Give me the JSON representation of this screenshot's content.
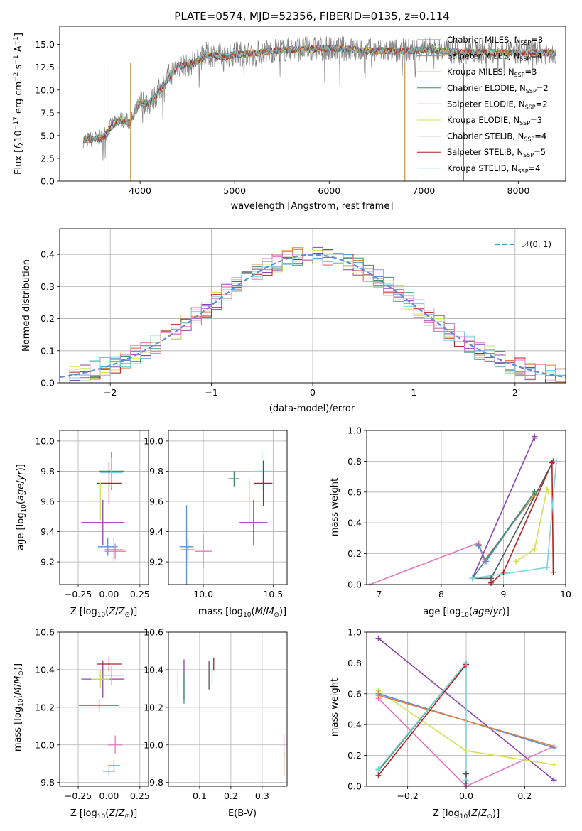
{
  "chart_data": [
    {
      "type": "line",
      "title": "PLATE=0574, MJD=52356, FIBERID=0135, z=0.114",
      "xlabel": "wavelength [Angstrom, rest frame]",
      "ylabel": "Flux [fλ10⁻¹⁷ erg cm⁻² s⁻¹ A⁻¹]",
      "xlim": [
        3150,
        8500
      ],
      "ylim": [
        0,
        17
      ],
      "xticks": [
        4000,
        5000,
        6000,
        7000,
        8000
      ],
      "yticks": [
        0.0,
        2.5,
        5.0,
        7.5,
        10.0,
        12.5,
        15.0
      ],
      "grid": false,
      "legend_position": "right",
      "data_series": {
        "name": "data",
        "color": "#808080",
        "x": [
          3400,
          3500,
          3600,
          3700,
          3800,
          3900,
          4000,
          4100,
          4200,
          4300,
          4400,
          4500,
          4600,
          4700,
          4800,
          4900,
          5000,
          5200,
          5400,
          5600,
          5800,
          6000,
          6200,
          6400,
          6600,
          6800,
          7000,
          7200,
          7400
        ],
        "y": [
          4.5,
          4.6,
          4.8,
          6.2,
          6.8,
          6.5,
          8.8,
          8.6,
          9.9,
          11.5,
          12.7,
          12.8,
          13.2,
          13.9,
          13.9,
          13.6,
          14.0,
          14.0,
          14.3,
          14.5,
          14.5,
          14.6,
          14.5,
          14.3,
          14.3,
          14.3,
          14.5,
          14.3,
          14.2
        ]
      },
      "model_curve": {
        "x": [
          3400,
          3500,
          3600,
          3700,
          3800,
          3900,
          4000,
          4100,
          4200,
          4300,
          4400,
          4500,
          4600,
          4700,
          4800,
          4900,
          5000,
          5200,
          5400,
          5600,
          5800,
          6000,
          6200,
          6400,
          6600,
          6800,
          7000,
          7200,
          7400
        ],
        "y": [
          4.5,
          4.6,
          4.7,
          6.0,
          6.7,
          6.4,
          8.6,
          8.5,
          9.8,
          11.3,
          12.6,
          12.8,
          13.1,
          13.8,
          13.8,
          13.6,
          13.9,
          14.0,
          14.3,
          14.4,
          14.5,
          14.6,
          14.5,
          14.3,
          14.3,
          14.3,
          14.4,
          14.3,
          14.1
        ]
      },
      "series": [
        {
          "name": "Chabrier MILES, N",
          "sub": "SSP",
          "count": "=3",
          "color": "#5b8ed6"
        },
        {
          "name": "Salpeter MILES, N",
          "sub": "SSP",
          "count": "=4",
          "color": "#e07f3a"
        },
        {
          "name": "Kroupa MILES, N",
          "sub": "SSP",
          "count": "=3",
          "color": "#c08020"
        },
        {
          "name": "Chabrier ELODIE, N",
          "sub": "SSP",
          "count": "=2",
          "color": "#3f8f6a"
        },
        {
          "name": "Salpeter ELODIE, N",
          "sub": "SSP",
          "count": "=2",
          "color": "#8e44ad"
        },
        {
          "name": "Kroupa ELODIE, N",
          "sub": "SSP",
          "count": "=3",
          "color": "#d4e157"
        },
        {
          "name": "Chabrier STELIB, N",
          "sub": "SSP",
          "count": "=4",
          "color": "#555555"
        },
        {
          "name": "Salpeter STELIB, N",
          "sub": "SSP",
          "count": "=5",
          "color": "#b22222"
        },
        {
          "name": "Kroupa STELIB, N",
          "sub": "SSP",
          "count": "=4",
          "color": "#7fd3dc"
        }
      ]
    },
    {
      "type": "line",
      "xlabel": "(data-model)/error",
      "ylabel": "Normed distribution",
      "xlim": [
        -2.5,
        2.5
      ],
      "ylim": [
        0,
        0.48
      ],
      "xticks": [
        -2,
        -1,
        0,
        1,
        2
      ],
      "yticks": [
        0.0,
        0.1,
        0.2,
        0.3,
        0.4
      ],
      "grid": true,
      "legend_position": "top-right",
      "legend_label": "𝒩(0, 1)",
      "gaussian": {
        "mu": 0,
        "sigma": 1
      },
      "bin_width": 0.1,
      "colors": [
        "#5b8ed6",
        "#e07f3a",
        "#3f8f6a",
        "#8e44ad",
        "#d4e157",
        "#b22222",
        "#7fd3dc",
        "#e377c2"
      ]
    },
    {
      "type": "scatter",
      "xlabel": "Z [log₁₀(Z/Z⊙)]",
      "ylabel": "age  [log₁₀(age/yr)]",
      "xlim": [
        -0.4,
        0.32
      ],
      "ylim": [
        9.05,
        10.07
      ],
      "xticks": [
        -0.25,
        0.0,
        0.25
      ],
      "yticks": [
        9.2,
        9.4,
        9.6,
        9.8,
        10.0
      ],
      "grid": true,
      "points": [
        {
          "x": 0.02,
          "y": 9.8,
          "xerr": 0.2,
          "yerr": 0.25,
          "color": "#3f8f6a"
        },
        {
          "x": 0.02,
          "y": 9.79,
          "xerr": 0.18,
          "yerr": 0.2,
          "color": "#7fd3dc"
        },
        {
          "x": 0.0,
          "y": 9.72,
          "xerr": 0.2,
          "yerr": 0.28,
          "color": "#b22222"
        },
        {
          "x": -0.07,
          "y": 9.6,
          "xerr": 0.15,
          "yerr": 0.25,
          "color": "#d4e157"
        },
        {
          "x": -0.05,
          "y": 9.46,
          "xerr": 0.35,
          "yerr": 0.3,
          "color": "#8e44ad"
        },
        {
          "x": -0.01,
          "y": 9.3,
          "xerr": 0.16,
          "yerr": 0.12,
          "color": "#5b8ed6"
        },
        {
          "x": 0.04,
          "y": 9.28,
          "xerr": 0.15,
          "yerr": 0.15,
          "color": "#e07f3a"
        },
        {
          "x": 0.05,
          "y": 9.27,
          "xerr": 0.17,
          "yerr": 0.1,
          "color": "#e377c2"
        }
      ]
    },
    {
      "type": "scatter",
      "xlabel": "mass [log₁₀(M/M⊙)]",
      "ylabel": "",
      "xlim": [
        9.75,
        10.6
      ],
      "ylim": [
        9.05,
        10.07
      ],
      "xticks": [
        10.0,
        10.5
      ],
      "yticks": [
        9.2,
        9.4,
        9.6,
        9.8,
        10.0
      ],
      "grid": true,
      "points": [
        {
          "x": 10.42,
          "y": 9.8,
          "xerr": 0.12,
          "yerr": 0.25,
          "color": "#7fd3dc"
        },
        {
          "x": 10.22,
          "y": 9.75,
          "xerr": 0.08,
          "yerr": 0.1,
          "color": "#3f8f6a"
        },
        {
          "x": 10.43,
          "y": 9.72,
          "xerr": 0.13,
          "yerr": 0.3,
          "color": "#b22222"
        },
        {
          "x": 10.33,
          "y": 9.6,
          "xerr": 0.12,
          "yerr": 0.29,
          "color": "#d4e157"
        },
        {
          "x": 10.36,
          "y": 9.46,
          "xerr": 0.2,
          "yerr": 0.3,
          "color": "#8e44ad"
        },
        {
          "x": 9.88,
          "y": 9.3,
          "xerr": 0.1,
          "yerr": 0.55,
          "color": "#5b8ed6"
        },
        {
          "x": 9.89,
          "y": 9.28,
          "xerr": 0.1,
          "yerr": 0.14,
          "color": "#e07f3a"
        },
        {
          "x": 10.0,
          "y": 9.27,
          "xerr": 0.12,
          "yerr": 0.22,
          "color": "#e377c2"
        }
      ]
    },
    {
      "type": "line",
      "xlabel": "age  [log₁₀(age/yr)]",
      "ylabel": "mass weight",
      "xlim": [
        6.8,
        10
      ],
      "ylim": [
        0,
        1
      ],
      "xticks": [
        7,
        8,
        9,
        10
      ],
      "yticks": [
        0.0,
        0.2,
        0.4,
        0.6,
        0.8,
        1.0
      ],
      "grid": true,
      "series": [
        {
          "color": "#e377c2",
          "x": [
            6.85,
            8.6,
            8.7
          ],
          "y": [
            0.0,
            0.27,
            0.15
          ]
        },
        {
          "color": "#e07f3a",
          "x": [
            8.6,
            8.7,
            9.5
          ],
          "y": [
            0.26,
            0.16,
            0.58
          ]
        },
        {
          "color": "#5b8ed6",
          "x": [
            8.6,
            8.72,
            9.5
          ],
          "y": [
            0.25,
            0.15,
            0.6
          ]
        },
        {
          "color": "#3f8f6a",
          "x": [
            8.5,
            9.5,
            9.5
          ],
          "y": [
            0.04,
            0.6,
            0.59
          ]
        },
        {
          "color": "#8e44ad",
          "x": [
            8.5,
            9.5,
            9.5
          ],
          "y": [
            0.04,
            0.96,
            0.95
          ]
        },
        {
          "color": "#d4e157",
          "x": [
            9.2,
            9.5,
            9.7,
            9.72
          ],
          "y": [
            0.15,
            0.23,
            0.62,
            0.6
          ]
        },
        {
          "color": "#b22222",
          "x": [
            8.8,
            9.0,
            9.78,
            9.8
          ],
          "y": [
            0.01,
            0.08,
            0.79,
            0.08
          ]
        },
        {
          "color": "#555555",
          "x": [
            8.5,
            8.8,
            9.8
          ],
          "y": [
            0.04,
            0.04,
            0.8
          ]
        },
        {
          "color": "#7fd3dc",
          "x": [
            8.5,
            9.7,
            9.85
          ],
          "y": [
            0.04,
            0.11,
            0.8
          ]
        }
      ]
    },
    {
      "type": "scatter",
      "xlabel": "Z [log₁₀(Z/Z⊙)]",
      "ylabel": "mass [log₁₀(M/M⊙)]",
      "xlim": [
        -0.4,
        0.32
      ],
      "ylim": [
        9.78,
        10.6
      ],
      "xticks": [
        -0.25,
        0.0,
        0.25
      ],
      "yticks": [
        9.8,
        10.0,
        10.2,
        10.4,
        10.6
      ],
      "grid": true,
      "points": [
        {
          "x": -0.08,
          "y": 10.21,
          "xerr": 0.33,
          "yerr": 0.07,
          "color": "#3f8f6a"
        },
        {
          "x": -0.05,
          "y": 10.35,
          "xerr": 0.35,
          "yerr": 0.2,
          "color": "#8e44ad"
        },
        {
          "x": 0.0,
          "y": 10.43,
          "xerr": 0.2,
          "yerr": 0.08,
          "color": "#b22222"
        },
        {
          "x": 0.02,
          "y": 10.37,
          "xerr": 0.2,
          "yerr": 0.1,
          "color": "#7fd3dc"
        },
        {
          "x": -0.07,
          "y": 10.35,
          "xerr": 0.15,
          "yerr": 0.1,
          "color": "#d4e157"
        },
        {
          "x": 0.0,
          "y": 9.86,
          "xerr": 0.1,
          "yerr": 0.05,
          "color": "#5b8ed6"
        },
        {
          "x": 0.04,
          "y": 9.89,
          "xerr": 0.1,
          "yerr": 0.06,
          "color": "#e07f3a"
        },
        {
          "x": 0.05,
          "y": 10.0,
          "xerr": 0.12,
          "yerr": 0.1,
          "color": "#e377c2"
        }
      ]
    },
    {
      "type": "scatter",
      "xlabel": "E(B-V)",
      "ylabel": "",
      "xlim": [
        0.0,
        0.38
      ],
      "ylim": [
        9.78,
        10.6
      ],
      "xticks": [
        0.1,
        0.2,
        0.3
      ],
      "yticks": [
        9.8,
        10.0,
        10.2,
        10.4,
        10.6
      ],
      "grid": true,
      "points": [
        {
          "x": 0.03,
          "y": 10.33,
          "yerr": 0.13,
          "color": "#d4e157"
        },
        {
          "x": 0.05,
          "y": 10.35,
          "yerr": 0.21,
          "color": "#8e44ad"
        },
        {
          "x": 0.05,
          "y": 10.3,
          "yerr": 0.16,
          "color": "#3f8f6a"
        },
        {
          "x": 0.13,
          "y": 10.37,
          "yerr": 0.15,
          "color": "#555555"
        },
        {
          "x": 0.14,
          "y": 10.38,
          "yerr": 0.12,
          "color": "#7fd3dc"
        },
        {
          "x": 0.145,
          "y": 10.43,
          "yerr": 0.07,
          "color": "#b22222"
        },
        {
          "x": 0.37,
          "y": 10.0,
          "yerr": 0.12,
          "color": "#e377c2"
        },
        {
          "x": 0.37,
          "y": 9.9,
          "yerr": 0.12,
          "color": "#e07f3a"
        }
      ]
    },
    {
      "type": "line",
      "xlabel": "Z [log₁₀(Z/Z⊙)]",
      "ylabel": "mass weight",
      "xlim": [
        -0.34,
        0.34
      ],
      "ylim": [
        0,
        1
      ],
      "xticks": [
        -0.2,
        0.0,
        0.2
      ],
      "yticks": [
        0.0,
        0.2,
        0.4,
        0.6,
        0.8,
        1.0
      ],
      "grid": true,
      "series": [
        {
          "color": "#8e44ad",
          "x": [
            -0.3,
            0.3
          ],
          "y": [
            0.96,
            0.04
          ]
        },
        {
          "color": "#e377c2",
          "x": [
            -0.3,
            0.0,
            0.3
          ],
          "y": [
            0.57,
            0.0,
            0.26
          ]
        },
        {
          "color": "#d4e157",
          "x": [
            -0.3,
            0.0,
            0.3
          ],
          "y": [
            0.62,
            0.23,
            0.14
          ]
        },
        {
          "color": "#5b8ed6",
          "x": [
            -0.3,
            0.3
          ],
          "y": [
            0.6,
            0.25
          ]
        },
        {
          "color": "#e07f3a",
          "x": [
            -0.3,
            0.3
          ],
          "y": [
            0.59,
            0.26
          ]
        },
        {
          "color": "#3f8f6a",
          "x": [
            -0.3,
            0.0
          ],
          "y": [
            0.1,
            0.8
          ]
        },
        {
          "color": "#b22222",
          "x": [
            -0.3,
            0.0
          ],
          "y": [
            0.07,
            0.79
          ]
        },
        {
          "color": "#7fd3dc",
          "x": [
            -0.3,
            0.0,
            0.0
          ],
          "y": [
            0.11,
            0.8,
            0.04
          ]
        },
        {
          "color": "#555555",
          "x": [
            0.0,
            0.0
          ],
          "y": [
            0.02,
            0.08
          ]
        }
      ]
    }
  ]
}
